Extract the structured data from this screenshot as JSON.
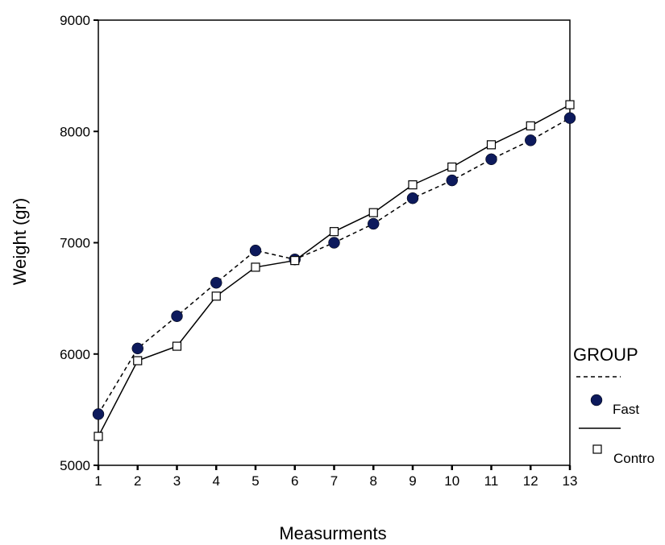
{
  "chart_data": {
    "type": "line",
    "xlabel": "Measurments",
    "ylabel": "Weight (gr)",
    "x": [
      1,
      2,
      3,
      4,
      5,
      6,
      7,
      8,
      9,
      10,
      11,
      12,
      13
    ],
    "xlim": [
      1,
      13
    ],
    "ylim": [
      5000,
      9000
    ],
    "yticks": [
      5000,
      6000,
      7000,
      8000,
      9000
    ],
    "grid": false,
    "legend": {
      "title": "GROUP",
      "placement": "right"
    },
    "series": [
      {
        "name": "Fast",
        "line": "dashed",
        "marker": "filled-circle",
        "color": "#0d1a5c",
        "values": [
          5460,
          6050,
          6340,
          6640,
          6930,
          6850,
          7000,
          7170,
          7400,
          7560,
          7750,
          7920,
          8120
        ]
      },
      {
        "name": "Contro",
        "line": "solid",
        "marker": "open-square",
        "color": "#000000",
        "values": [
          5260,
          5940,
          6070,
          6520,
          6780,
          6840,
          7100,
          7270,
          7520,
          7680,
          7880,
          8050,
          8240
        ]
      }
    ]
  }
}
